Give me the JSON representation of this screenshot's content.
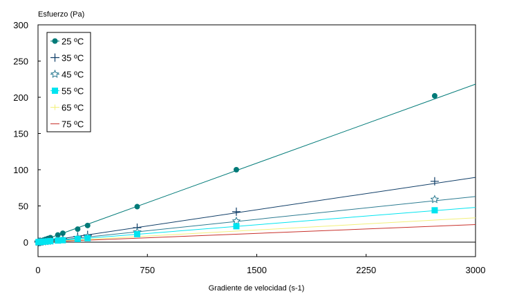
{
  "chart_data": {
    "type": "scatter",
    "title": "",
    "ylabel": "Esfuerzo (Pa)",
    "xlabel": "Gradiente de velocidad (s-1)",
    "xlim": [
      0,
      3000
    ],
    "ylim": [
      -20,
      300
    ],
    "xticks": [
      0,
      750,
      1500,
      2250,
      3000
    ],
    "yticks": [
      0,
      50,
      100,
      150,
      200,
      250,
      300
    ],
    "legend_position": "top-left",
    "grid": false,
    "series": [
      {
        "name": "25 ºC",
        "color": "#007a78",
        "marker": "filled-circle",
        "slope": 0.0727,
        "x": [
          3,
          5,
          10,
          17,
          34,
          51,
          68,
          85,
          136,
          170,
          272,
          340,
          680,
          1360,
          2720
        ],
        "y": [
          0.2,
          0.4,
          0.8,
          1.3,
          2.5,
          3.8,
          5,
          6.2,
          9.9,
          12.3,
          18,
          23,
          49,
          100,
          202
        ]
      },
      {
        "name": "35 ºC",
        "color": "#0e3c66",
        "marker": "plus",
        "slope": 0.0298,
        "x": [
          3,
          5,
          10,
          17,
          34,
          51,
          68,
          85,
          136,
          170,
          272,
          340,
          680,
          1360,
          2720
        ],
        "y": [
          0.1,
          0.2,
          0.3,
          0.5,
          1,
          1.5,
          2,
          2.5,
          4,
          5,
          8,
          10,
          20,
          42,
          84
        ]
      },
      {
        "name": "45 ºC",
        "color": "#2a7a90",
        "marker": "open-star",
        "slope": 0.021,
        "x": [
          3,
          5,
          10,
          17,
          34,
          51,
          68,
          85,
          136,
          170,
          272,
          340,
          680,
          1360,
          2720
        ],
        "y": [
          0.1,
          0.1,
          0.2,
          0.4,
          0.7,
          1.1,
          1.4,
          1.8,
          2.9,
          3.6,
          5.7,
          7.2,
          14,
          29,
          59
        ]
      },
      {
        "name": "55 ºC",
        "color": "#00e4f0",
        "marker": "filled-square",
        "slope": 0.016,
        "x": [
          3,
          5,
          10,
          17,
          34,
          51,
          68,
          85,
          136,
          170,
          272,
          340,
          680,
          1360,
          2720
        ],
        "y": [
          0.05,
          0.08,
          0.16,
          0.27,
          0.55,
          0.8,
          1.1,
          1.4,
          2.2,
          2.7,
          4.4,
          5.5,
          11,
          22,
          44
        ]
      },
      {
        "name": "65 ºC",
        "color": "#f2f07a",
        "marker": "small-plus",
        "slope": 0.0112,
        "x": [],
        "y": []
      },
      {
        "name": "75 ºC",
        "color": "#c8302a",
        "marker": "none",
        "slope": 0.0081,
        "x": [],
        "y": []
      }
    ]
  }
}
